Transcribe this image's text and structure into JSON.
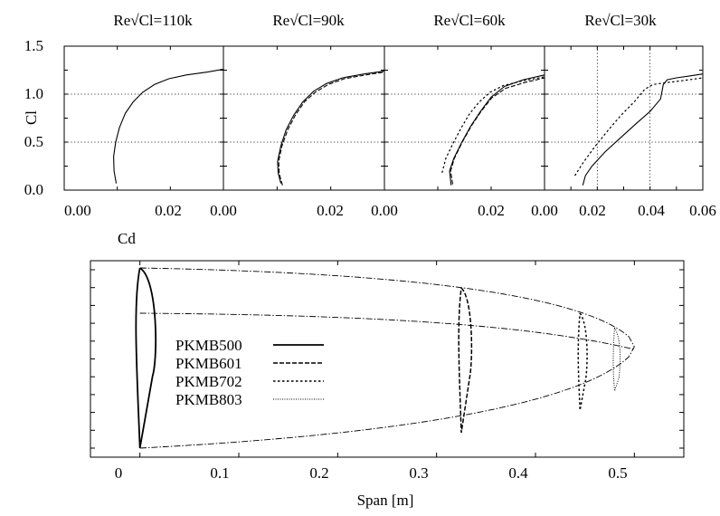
{
  "chart_data": [
    {
      "type": "line",
      "title": "Re√Cl=110k",
      "xlabel": "Cd",
      "ylabel": "Cl",
      "xlim": [
        0.0,
        0.03
      ],
      "ylim": [
        0.0,
        1.5
      ],
      "xticks": [
        "0.00",
        "0.02"
      ],
      "yticks": [
        "0.0",
        "0.5",
        "1.0",
        "1.5"
      ],
      "grid": "y-dotted",
      "series": [
        {
          "style": "solid",
          "x": [
            0.0098,
            0.0094,
            0.0093,
            0.0097,
            0.0104,
            0.0115,
            0.013,
            0.0148,
            0.017,
            0.0197,
            0.023,
            0.027,
            0.03
          ],
          "y": [
            0.07,
            0.2,
            0.35,
            0.5,
            0.65,
            0.8,
            0.92,
            1.02,
            1.1,
            1.16,
            1.2,
            1.23,
            1.26
          ]
        }
      ]
    },
    {
      "type": "line",
      "title": "Re√Cl=90k",
      "xlim": [
        0.0,
        0.03
      ],
      "ylim": [
        0.0,
        1.5
      ],
      "xticks": [
        "0.00",
        "0.02"
      ],
      "grid": "y-dotted",
      "series": [
        {
          "style": "solid",
          "x": [
            0.0107,
            0.0102,
            0.0101,
            0.0107,
            0.0117,
            0.0131,
            0.0148,
            0.0168,
            0.0192,
            0.0222,
            0.0262,
            0.03
          ],
          "y": [
            0.07,
            0.18,
            0.3,
            0.46,
            0.63,
            0.78,
            0.92,
            1.03,
            1.11,
            1.17,
            1.21,
            1.24
          ]
        },
        {
          "style": "dashed",
          "x": [
            0.011,
            0.0104,
            0.0103,
            0.0109,
            0.012,
            0.0134,
            0.0151,
            0.0171,
            0.0195,
            0.0225,
            0.0265,
            0.03
          ],
          "y": [
            0.05,
            0.17,
            0.3,
            0.46,
            0.63,
            0.78,
            0.92,
            1.02,
            1.1,
            1.16,
            1.2,
            1.23
          ]
        }
      ]
    },
    {
      "type": "line",
      "title": "Re√Cl=60k",
      "xlim": [
        0.0,
        0.03
      ],
      "ylim": [
        0.0,
        1.5
      ],
      "xticks": [
        "0.00",
        "0.02"
      ],
      "grid": "y-dotted",
      "series": [
        {
          "style": "solid",
          "x": [
            0.0125,
            0.0122,
            0.013,
            0.0145,
            0.0162,
            0.018,
            0.02,
            0.0225,
            0.026,
            0.03
          ],
          "y": [
            0.05,
            0.2,
            0.33,
            0.5,
            0.67,
            0.82,
            0.97,
            1.08,
            1.15,
            1.2
          ]
        },
        {
          "style": "dotted",
          "x": [
            0.0108,
            0.0115,
            0.0128,
            0.0143,
            0.016,
            0.0178,
            0.0198,
            0.0223,
            0.026,
            0.03
          ],
          "y": [
            0.18,
            0.33,
            0.48,
            0.64,
            0.8,
            0.92,
            1.02,
            1.09,
            1.14,
            1.18
          ]
        },
        {
          "style": "dashed",
          "x": [
            0.0128,
            0.0124,
            0.0131,
            0.0146,
            0.0163,
            0.0181,
            0.0201,
            0.0227,
            0.0262,
            0.03
          ],
          "y": [
            0.06,
            0.2,
            0.33,
            0.5,
            0.67,
            0.82,
            0.96,
            1.06,
            1.12,
            1.17
          ]
        }
      ]
    },
    {
      "type": "line",
      "title": "Re√Cl=30k",
      "xlim": [
        0.0,
        0.06
      ],
      "ylim": [
        0.0,
        1.5
      ],
      "xticks": [
        "0.00",
        "0.02",
        "0.04",
        "0.06"
      ],
      "grid": "xy-dotted",
      "series": [
        {
          "style": "solid",
          "x": [
            0.0145,
            0.0155,
            0.018,
            0.023,
            0.029,
            0.035,
            0.04,
            0.044,
            0.045,
            0.0465,
            0.05,
            0.055,
            0.06
          ],
          "y": [
            0.05,
            0.15,
            0.25,
            0.4,
            0.55,
            0.7,
            0.82,
            0.95,
            1.1,
            1.15,
            1.17,
            1.19,
            1.21
          ]
        },
        {
          "style": "dotted",
          "x": [
            0.0115,
            0.0145,
            0.019,
            0.024,
            0.029,
            0.034,
            0.038,
            0.041,
            0.046,
            0.052,
            0.06
          ],
          "y": [
            0.15,
            0.28,
            0.45,
            0.62,
            0.78,
            0.92,
            1.05,
            1.1,
            1.12,
            1.14,
            1.17
          ]
        }
      ]
    },
    {
      "type": "line",
      "xlabel": "Span [m]",
      "xlim": [
        -0.05,
        0.55
      ],
      "xticks": [
        "0",
        "0.1",
        "0.2",
        "0.3",
        "0.4",
        "0.5"
      ],
      "legend": [
        "PKMB500",
        "PKMB601",
        "PKMB702",
        "PKMB803"
      ],
      "legend_placement": "left"
    }
  ]
}
